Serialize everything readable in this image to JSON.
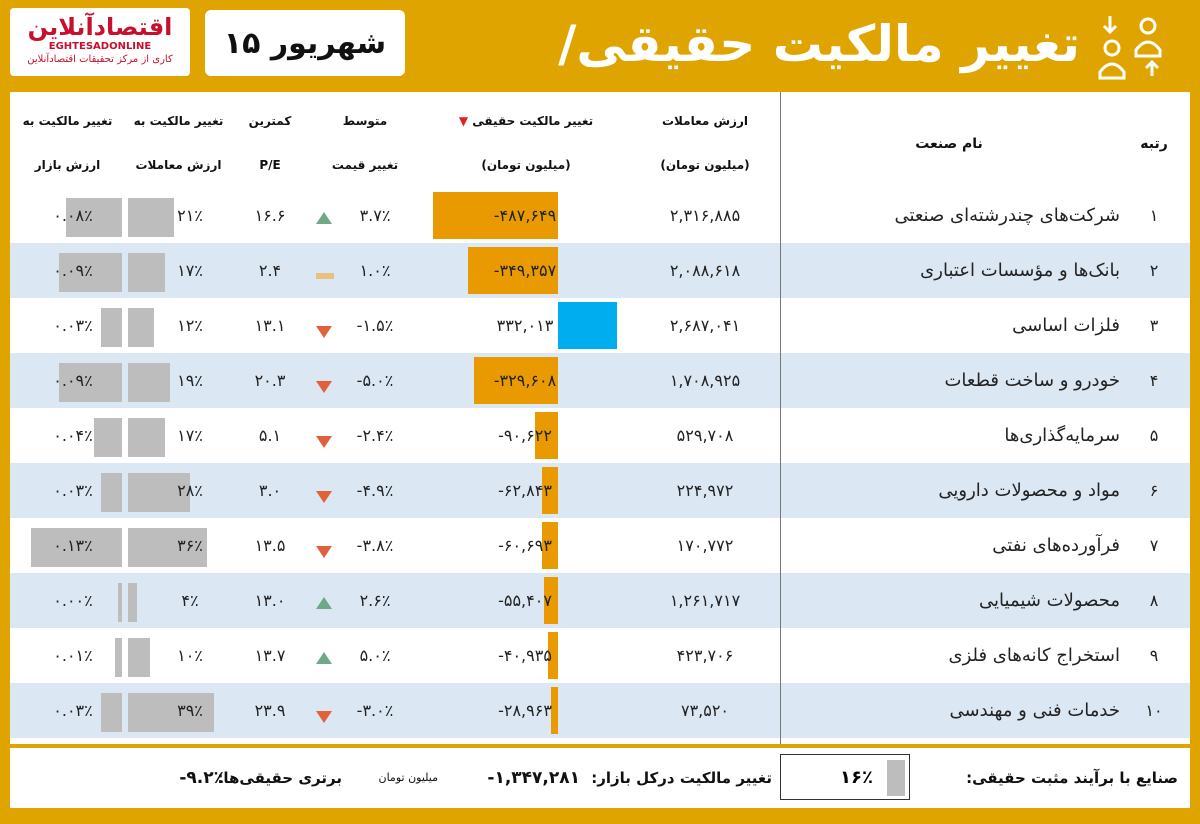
{
  "header": {
    "title": "تغییر مالکیت حقیقی/حقوقی",
    "date": "۱۵ شهریور",
    "logo_mark": "اقتصادآنلاین",
    "logo_latin": "EGHTESADONLINE",
    "logo_tagline": "کاری از مرکز تحقیقات اقتصادآنلاین"
  },
  "colors": {
    "accent": "#e0a400",
    "negative_bar": "#e89a00",
    "positive_bar": "#00adef",
    "neutral_bar": "#bdbdbd",
    "row_alt": "#dbe7f3",
    "up_arrow": "#6fa887",
    "down_arrow": "#e0613a"
  },
  "columns": {
    "rank": "رتبه",
    "industry": "نام صنعت",
    "trade_value_1": "ارزش معاملات",
    "trade_value_2": "(میلیون تومان)",
    "real_change_1": "تغییر مالکیت حقیقی",
    "real_change_2": "(میلیون تومان)",
    "price_change_1": "متوسط",
    "price_change_2": "تغییر قیمت",
    "pe_1": "کمترین",
    "pe_2": "P/E",
    "to_trade_1": "تغییر مالکیت به",
    "to_trade_2": "ارزش معاملات",
    "to_mcap_1": "تغییر مالکیت به",
    "to_mcap_2": "ارزش بازار"
  },
  "rows": [
    {
      "rank": "۱",
      "name": "شرکت‌های چندرشته‌ای صنعتی",
      "trade": "۲,۳۱۶,۸۸۵",
      "real": "-۴۸۷,۶۴۹",
      "real_value": -487649,
      "price": "۳.۷٪",
      "trend": "up",
      "pe": "۱۶.۶",
      "to_trade": "۲۱٪",
      "to_trade_value": 21,
      "to_mcap": "۰.۰۸٪",
      "to_mcap_value": 0.08
    },
    {
      "rank": "۲",
      "name": "بانک‌ها و مؤسسات اعتباری",
      "trade": "۲,۰۸۸,۶۱۸",
      "real": "-۳۴۹,۳۵۷",
      "real_value": -349357,
      "price": "۱.۰٪",
      "trend": "flat",
      "pe": "۲.۴",
      "to_trade": "۱۷٪",
      "to_trade_value": 17,
      "to_mcap": "۰.۰۹٪",
      "to_mcap_value": 0.09
    },
    {
      "rank": "۳",
      "name": "فلزات اساسی",
      "trade": "۲,۶۸۷,۰۴۱",
      "real": "۳۳۲,۰۱۳",
      "real_value": 332013,
      "price": "-۱.۵٪",
      "trend": "down",
      "pe": "۱۳.۱",
      "to_trade": "۱۲٪",
      "to_trade_value": 12,
      "to_mcap": "۰.۰۳٪",
      "to_mcap_value": 0.03
    },
    {
      "rank": "۴",
      "name": "خودرو و ساخت قطعات",
      "trade": "۱,۷۰۸,۹۲۵",
      "real": "-۳۲۹,۶۰۸",
      "real_value": -329608,
      "price": "-۵.۰٪",
      "trend": "down",
      "pe": "۲۰.۳",
      "to_trade": "۱۹٪",
      "to_trade_value": 19,
      "to_mcap": "۰.۰۹٪",
      "to_mcap_value": 0.09
    },
    {
      "rank": "۵",
      "name": "سرمایه‌گذاری‌ها",
      "trade": "۵۲۹,۷۰۸",
      "real": "-۹۰,۶۲۲",
      "real_value": -90622,
      "price": "-۲.۴٪",
      "trend": "down",
      "pe": "۵.۱",
      "to_trade": "۱۷٪",
      "to_trade_value": 17,
      "to_mcap": "۰.۰۴٪",
      "to_mcap_value": 0.04
    },
    {
      "rank": "۶",
      "name": "مواد و محصولات دارویی",
      "trade": "۲۲۴,۹۷۲",
      "real": "-۶۲,۸۴۳",
      "real_value": -62843,
      "price": "-۴.۹٪",
      "trend": "down",
      "pe": "۳.۰",
      "to_trade": "۲۸٪",
      "to_trade_value": 28,
      "to_mcap": "۰.۰۳٪",
      "to_mcap_value": 0.03
    },
    {
      "rank": "۷",
      "name": "فرآورده‌های نفتی",
      "trade": "۱۷۰,۷۷۲",
      "real": "-۶۰,۶۹۳",
      "real_value": -60693,
      "price": "-۳.۸٪",
      "trend": "down",
      "pe": "۱۳.۵",
      "to_trade": "۳۶٪",
      "to_trade_value": 36,
      "to_mcap": "۰.۱۳٪",
      "to_mcap_value": 0.13
    },
    {
      "rank": "۸",
      "name": "محصولات شیمیایی",
      "trade": "۱,۲۶۱,۷۱۷",
      "real": "-۵۵,۴۰۷",
      "real_value": -55407,
      "price": "۲.۶٪",
      "trend": "up",
      "pe": "۱۳.۰",
      "to_trade": "۴٪",
      "to_trade_value": 4,
      "to_mcap": "۰.۰۰٪",
      "to_mcap_value": 0.0
    },
    {
      "rank": "۹",
      "name": "استخراج کانه‌های فلزی",
      "trade": "۴۲۳,۷۰۶",
      "real": "-۴۰,۹۳۵",
      "real_value": -40935,
      "price": "۵.۰٪",
      "trend": "up",
      "pe": "۱۳.۷",
      "to_trade": "۱۰٪",
      "to_trade_value": 10,
      "to_mcap": "۰.۰۱٪",
      "to_mcap_value": 0.01
    },
    {
      "rank": "۱۰",
      "name": "خدمات فنی و مهندسی",
      "trade": "۷۳,۵۲۰",
      "real": "-۲۸,۹۶۳",
      "real_value": -28963,
      "price": "-۳.۰٪",
      "trend": "down",
      "pe": "۲۳.۹",
      "to_trade": "۳۹٪",
      "to_trade_value": 39,
      "to_mcap": "۰.۰۳٪",
      "to_mcap_value": 0.03
    }
  ],
  "footer": {
    "positive_label": "صنایع با برآیند مثبت حقیقی:",
    "positive_value": "۱۶٪",
    "market_label": "تغییر مالکیت درکل بازار:",
    "market_value": "-۱,۳۴۷,۲۸۱",
    "market_unit": "میلیون تومان",
    "dominance_label": "برتری حقیقی‌ها:",
    "dominance_value": "-۹.۲٪"
  }
}
